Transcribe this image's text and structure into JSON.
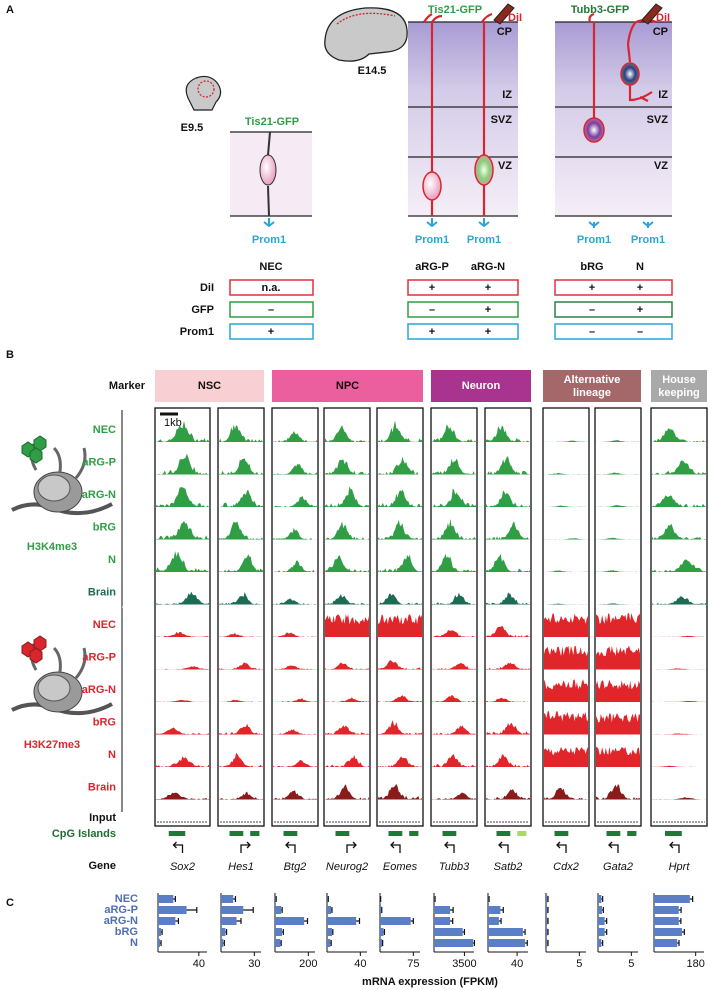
{
  "panel_a": {
    "label": "A",
    "stages": [
      "E9.5",
      "E14.5"
    ],
    "reporters": [
      "Tis21-GFP",
      "Tis21-GFP",
      "Tubb3-GFP"
    ],
    "dye": "DiI",
    "zones": [
      "CP",
      "IZ",
      "SVZ",
      "VZ"
    ],
    "prom1_label": "Prom1",
    "table": {
      "columns": [
        "NEC",
        "aRG-P",
        "aRG-N",
        "bRG",
        "N"
      ],
      "rows": [
        {
          "name": "DiI",
          "values": [
            "n.a.",
            "+",
            "+",
            "+",
            "+"
          ]
        },
        {
          "name": "GFP",
          "values": [
            "–",
            "–",
            "+",
            "–",
            "+"
          ]
        },
        {
          "name": "Prom1",
          "values": [
            "+",
            "+",
            "+",
            "–",
            "–"
          ]
        }
      ]
    }
  },
  "panel_b": {
    "label": "B",
    "marker_label": "Marker",
    "scale_bar": "1kb",
    "markers": [
      {
        "name": "NSC",
        "genes": [
          "Sox2",
          "Hes1"
        ]
      },
      {
        "name": "NPC",
        "genes": [
          "Btg2",
          "Neurog2",
          "Eomes"
        ]
      },
      {
        "name": "Neuron",
        "genes": [
          "Tubb3",
          "Satb2"
        ]
      },
      {
        "name": "Alternative lineage",
        "genes": [
          "Cdx2",
          "Gata2"
        ]
      },
      {
        "name": "House keeping",
        "genes": [
          "Hprt"
        ]
      }
    ],
    "histone_groups": [
      {
        "mark": "H3K4me3",
        "tracks": [
          "NEC",
          "aRG-P",
          "aRG-N",
          "bRG",
          "N",
          "Brain"
        ]
      },
      {
        "mark": "H3K27me3",
        "tracks": [
          "NEC",
          "aRG-P",
          "aRG-N",
          "bRG",
          "N",
          "Brain"
        ]
      }
    ],
    "input_label": "Input",
    "cpg_label": "CpG Islands",
    "gene_label": "Gene"
  },
  "chart_data": {
    "type": "bar",
    "label": "C",
    "categories": [
      "NEC",
      "aRG-P",
      "aRG-N",
      "bRG",
      "N"
    ],
    "xlabel": "mRNA expression (FPKM)",
    "color": "#5b7fc7",
    "groups": [
      {
        "xlim": [
          0,
          48
        ],
        "xticks": [
          40
        ],
        "values": [
          15,
          28,
          17,
          3,
          2
        ],
        "errors": [
          2,
          10,
          3,
          1,
          1
        ]
      },
      {
        "xlim": [
          0,
          36
        ],
        "xticks": [
          30
        ],
        "values": [
          11,
          20,
          14,
          4,
          2
        ],
        "errors": [
          2,
          9,
          4,
          1,
          1
        ]
      },
      {
        "xlim": [
          0,
          240
        ],
        "xticks": [
          200
        ],
        "values": [
          5,
          37,
          175,
          42,
          32
        ],
        "errors": [
          2,
          6,
          20,
          8,
          5
        ]
      },
      {
        "xlim": [
          0,
          48
        ],
        "xticks": [
          40
        ],
        "values": [
          1,
          5,
          35,
          6,
          4
        ],
        "errors": [
          0.5,
          1,
          4,
          1,
          1
        ]
      },
      {
        "xlim": [
          0,
          90
        ],
        "xticks": [
          75
        ],
        "values": [
          1,
          3,
          69,
          8,
          5
        ],
        "errors": [
          0.5,
          1,
          6,
          2,
          1
        ]
      },
      {
        "xlim": [
          0,
          4600
        ],
        "xticks": [
          3500
        ],
        "values": [
          90,
          1850,
          1850,
          3300,
          4500
        ],
        "errors": [
          30,
          350,
          300,
          200,
          150
        ]
      },
      {
        "xlim": [
          0,
          55
        ],
        "xticks": [
          40
        ],
        "values": [
          1,
          17,
          15,
          48,
          51
        ],
        "errors": [
          0.5,
          4,
          3,
          3,
          3
        ]
      },
      {
        "xlim": [
          0,
          6
        ],
        "xticks": [
          5
        ],
        "values": [
          0.2,
          0.2,
          0.2,
          0.2,
          0.2
        ],
        "errors": [
          0.1,
          0.1,
          0.1,
          0.1,
          0.1
        ]
      },
      {
        "xlim": [
          0,
          6
        ],
        "xticks": [
          5
        ],
        "values": [
          0.5,
          0.6,
          1,
          1,
          0.5
        ],
        "errors": [
          0.2,
          0.2,
          0.3,
          0.3,
          0.2
        ]
      },
      {
        "xlim": [
          0,
          216
        ],
        "xticks": [
          180
        ],
        "values": [
          155,
          107,
          107,
          121,
          100
        ],
        "errors": [
          12,
          10,
          9,
          10,
          8
        ]
      }
    ]
  }
}
